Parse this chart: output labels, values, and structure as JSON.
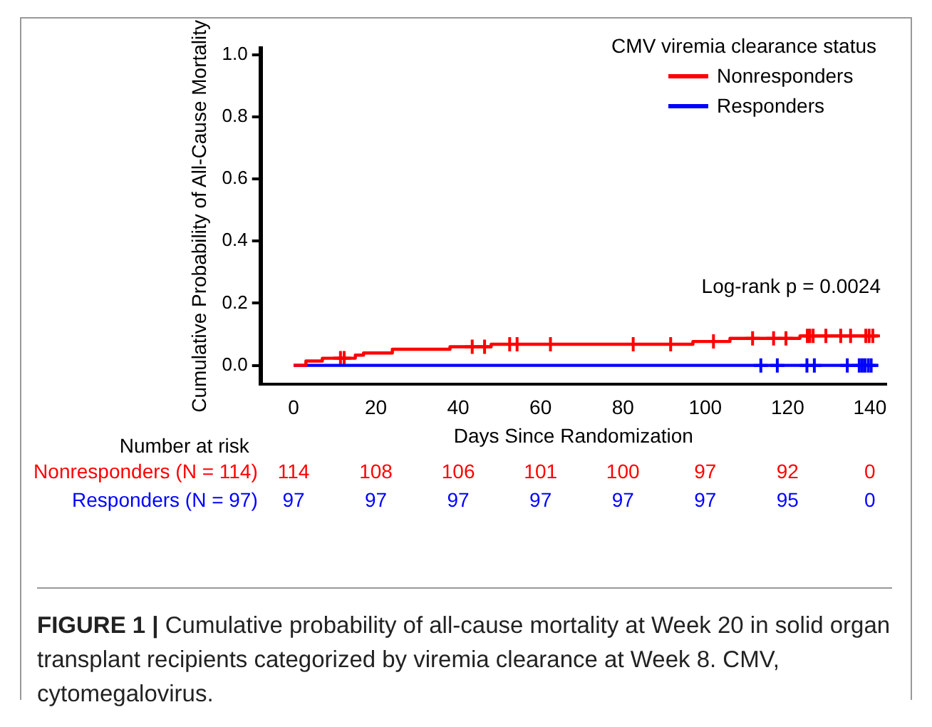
{
  "chart_data": {
    "type": "step",
    "ylabel": "Cumulative Probability of All-Cause Mortality",
    "xlabel": "Days Since Randomization",
    "legend_title": "CMV viremia clearance status",
    "legend": "top right",
    "grid": false,
    "xlim": [
      -8,
      144
    ],
    "xticks": [
      0,
      20,
      40,
      60,
      80,
      100,
      120,
      140
    ],
    "ylim": [
      -0.06,
      1.02
    ],
    "yticks": [
      {
        "value": 0,
        "label": "0.0"
      },
      {
        "value": 0.2,
        "label": "0.2"
      },
      {
        "value": 0.4,
        "label": "0.4"
      },
      {
        "value": 0.6,
        "label": "0.6"
      },
      {
        "value": 0.8,
        "label": "0.8"
      },
      {
        "value": 1,
        "label": "1.0"
      }
    ],
    "series": [
      {
        "name": "Nonresponders",
        "color": "#ff0000",
        "marker": "none",
        "x": [
          0,
          3,
          7,
          15,
          17,
          24,
          38,
          48,
          97,
          106,
          123,
          142
        ],
        "values": [
          0,
          0.014,
          0.023,
          0.033,
          0.04,
          0.052,
          0.06,
          0.068,
          0.077,
          0.087,
          0.095,
          0.095
        ]
      },
      {
        "name": "Responders",
        "color": "#0000ff",
        "marker": "none",
        "x": [
          0,
          142
        ],
        "values": [
          0,
          0
        ]
      },
      {
        "type": "scatter",
        "color": "#ff0000",
        "marker": "cross",
        "x": [
          11.4,
          12.3,
          43.4,
          46.4,
          52.5,
          54.3,
          62.4,
          82.5,
          91.6,
          102,
          111.5,
          116.6,
          119.6,
          124.8,
          125.4,
          126.2,
          129.3,
          132.9,
          135.3,
          139,
          139.8,
          140.7
        ],
        "values": [
          0.023,
          0.023,
          0.06,
          0.06,
          0.068,
          0.068,
          0.068,
          0.068,
          0.068,
          0.077,
          0.087,
          0.087,
          0.087,
          0.095,
          0.095,
          0.095,
          0.095,
          0.095,
          0.095,
          0.095,
          0.095,
          0.095
        ]
      },
      {
        "type": "scatter",
        "color": "#0000ff",
        "marker": "cross",
        "x": [
          113.5,
          117.5,
          124.7,
          126.5,
          134.5,
          137.4,
          138.1,
          138.8,
          139.6,
          140.3
        ],
        "values": [
          0,
          0,
          0,
          0,
          0,
          0,
          0,
          0,
          0,
          0
        ]
      }
    ],
    "annotations": [
      "Log-rank p = 0.0024",
      "Number at risk",
      "Nonresponders (N = 114)",
      "114",
      "108",
      "106",
      "101",
      "100",
      "97",
      "92",
      "0",
      "Responders (N = 97)",
      "97",
      "97",
      "97",
      "97",
      "97",
      "97",
      "95",
      "0",
      "FIGURE 1 | Cumulative probability of all-cause mortality at Week 20 in solid organ transplant recipients categorized by viremia clearance at Week 8. CMV, cytomegalovirus."
    ]
  }
}
